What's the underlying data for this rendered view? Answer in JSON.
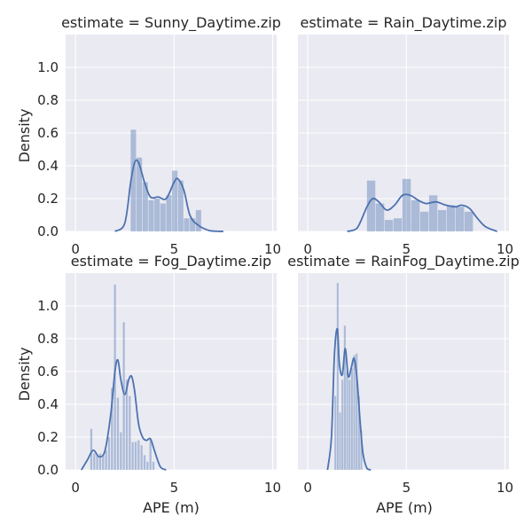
{
  "figure": {
    "xlabel": "APE (m)",
    "ylabel": "Density"
  },
  "chart_data": [
    {
      "type": "bar",
      "title": "estimate = Sunny_Daytime.zip",
      "xlabel": "",
      "ylabel": "Density",
      "xlim": [
        -0.5,
        10.2
      ],
      "ylim": [
        0,
        1.2
      ],
      "xticks": [
        "0",
        "5",
        "10"
      ],
      "yticks": [
        "0.0",
        "0.2",
        "0.4",
        "0.6",
        "0.8",
        "1.0"
      ],
      "grid": true,
      "bar_width": 0.3,
      "bar_starts": [
        2.8,
        3.1,
        3.4,
        3.7,
        4.0,
        4.3,
        4.6,
        4.9,
        5.2,
        5.5,
        5.8,
        6.1,
        6.4
      ],
      "bar_values": [
        0.62,
        0.45,
        0.3,
        0.19,
        0.2,
        0.17,
        0.22,
        0.37,
        0.31,
        0.08,
        0.08,
        0.13,
        0
      ],
      "kde_x": [
        2.0,
        2.5,
        2.8,
        3.0,
        3.2,
        3.5,
        3.8,
        4.2,
        4.6,
        5.0,
        5.2,
        5.5,
        5.8,
        6.2,
        6.8,
        7.5
      ],
      "kde_y": [
        0,
        0.05,
        0.3,
        0.42,
        0.42,
        0.3,
        0.21,
        0.21,
        0.2,
        0.3,
        0.32,
        0.25,
        0.1,
        0.04,
        0.005,
        0
      ]
    },
    {
      "type": "bar",
      "title": "estimate = Rain_Daytime.zip",
      "xlabel": "",
      "ylabel": "",
      "xlim": [
        -0.5,
        10.2
      ],
      "ylim": [
        0,
        1.2
      ],
      "xticks": [
        "0",
        "5",
        "10"
      ],
      "yticks": [],
      "grid": true,
      "bar_width": 0.45,
      "bar_starts": [
        3.0,
        3.45,
        3.9,
        4.35,
        4.8,
        5.25,
        5.7,
        6.15,
        6.6,
        7.05,
        7.5,
        7.95
      ],
      "bar_values": [
        0.31,
        0.17,
        0.07,
        0.08,
        0.32,
        0.19,
        0.12,
        0.22,
        0.13,
        0.16,
        0.15,
        0.12
      ],
      "kde_x": [
        2.0,
        2.5,
        3.0,
        3.3,
        3.6,
        4.0,
        4.4,
        4.8,
        5.2,
        5.6,
        6.0,
        6.5,
        7.0,
        7.5,
        7.8,
        8.2,
        8.6,
        9.0,
        9.6
      ],
      "kde_y": [
        0,
        0.02,
        0.15,
        0.2,
        0.18,
        0.13,
        0.16,
        0.22,
        0.22,
        0.19,
        0.17,
        0.18,
        0.16,
        0.15,
        0.16,
        0.14,
        0.08,
        0.03,
        0
      ]
    },
    {
      "type": "bar",
      "title": "estimate = Fog_Daytime.zip",
      "xlabel": "APE (m)",
      "ylabel": "Density",
      "xlim": [
        -0.5,
        10.2
      ],
      "ylim": [
        0,
        1.2
      ],
      "xticks": [
        "0",
        "5",
        "10"
      ],
      "yticks": [
        "0.0",
        "0.2",
        "0.4",
        "0.6",
        "0.8",
        "1.0"
      ],
      "grid": true,
      "bar_width": 0.13,
      "bar_starts": [
        0.75,
        0.9,
        1.05,
        1.2,
        1.35,
        1.5,
        1.65,
        1.8,
        1.95,
        2.1,
        2.25,
        2.4,
        2.55,
        2.7,
        2.85,
        3.0,
        3.15,
        3.3,
        3.45,
        3.6,
        3.75,
        3.9
      ],
      "bar_values": [
        0.25,
        0.1,
        0.09,
        0.1,
        0.09,
        0.12,
        0.2,
        0.5,
        1.13,
        0.44,
        0.23,
        0.9,
        0.55,
        0.45,
        0.17,
        0.17,
        0.18,
        0.15,
        0.09,
        0.05,
        0.19,
        0.05
      ],
      "kde_x": [
        0.3,
        0.6,
        0.9,
        1.2,
        1.5,
        1.8,
        2.0,
        2.15,
        2.3,
        2.5,
        2.7,
        2.85,
        3.0,
        3.2,
        3.4,
        3.6,
        3.8,
        4.0,
        4.3,
        4.6
      ],
      "kde_y": [
        0,
        0.06,
        0.12,
        0.08,
        0.12,
        0.35,
        0.6,
        0.67,
        0.55,
        0.46,
        0.55,
        0.57,
        0.48,
        0.28,
        0.2,
        0.18,
        0.19,
        0.12,
        0.02,
        0
      ]
    },
    {
      "type": "bar",
      "title": "estimate = RainFog_Daytime.zip",
      "xlabel": "APE (m)",
      "ylabel": "",
      "xlim": [
        -0.5,
        10.2
      ],
      "ylim": [
        0,
        1.2
      ],
      "xticks": [
        "0",
        "5",
        "10"
      ],
      "yticks": [],
      "grid": true,
      "bar_width": 0.12,
      "bar_starts": [
        1.35,
        1.47,
        1.59,
        1.71,
        1.83,
        1.95,
        2.07,
        2.19,
        2.31,
        2.43,
        2.55,
        2.67
      ],
      "bar_values": [
        0.45,
        1.14,
        0.35,
        0.55,
        0.88,
        0.6,
        0.55,
        0.62,
        0.7,
        0.71,
        0.45,
        0.24
      ],
      "kde_x": [
        1.0,
        1.2,
        1.35,
        1.5,
        1.6,
        1.75,
        1.9,
        2.05,
        2.2,
        2.35,
        2.5,
        2.65,
        2.8,
        3.0,
        3.2
      ],
      "kde_y": [
        0,
        0.2,
        0.7,
        0.86,
        0.65,
        0.58,
        0.74,
        0.57,
        0.62,
        0.68,
        0.55,
        0.3,
        0.1,
        0.01,
        0
      ]
    }
  ]
}
